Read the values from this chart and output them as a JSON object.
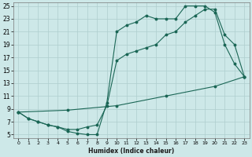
{
  "xlabel": "Humidex (Indice chaleur)",
  "xlim": [
    -0.5,
    23.5
  ],
  "ylim": [
    4.5,
    25.5
  ],
  "xticks": [
    0,
    1,
    2,
    3,
    4,
    5,
    6,
    7,
    8,
    9,
    10,
    11,
    12,
    13,
    14,
    15,
    16,
    17,
    18,
    19,
    20,
    21,
    22,
    23
  ],
  "yticks": [
    5,
    7,
    9,
    11,
    13,
    15,
    17,
    19,
    21,
    23,
    25
  ],
  "bg_color": "#cde8e8",
  "grid_color": "#aecece",
  "line_color": "#1a6655",
  "line1_x": [
    0,
    1,
    2,
    3,
    4,
    5,
    6,
    7,
    8,
    9,
    10,
    11,
    12,
    13,
    14,
    15,
    16,
    17,
    18,
    19,
    20,
    21,
    22,
    23
  ],
  "line1_y": [
    8.5,
    7.5,
    7.0,
    6.5,
    6.2,
    5.5,
    5.2,
    5.0,
    5.0,
    10.0,
    21.0,
    22.0,
    22.5,
    23.5,
    23.0,
    23.0,
    23.0,
    25.0,
    25.0,
    25.0,
    24.0,
    19.0,
    16.0,
    14.0
  ],
  "line2_x": [
    0,
    1,
    2,
    3,
    4,
    5,
    6,
    7,
    8,
    9,
    10,
    11,
    12,
    13,
    14,
    15,
    16,
    17,
    18,
    19,
    20,
    21,
    22,
    23
  ],
  "line2_y": [
    8.5,
    7.5,
    7.0,
    6.5,
    6.2,
    5.8,
    5.8,
    6.2,
    6.5,
    9.5,
    16.5,
    17.5,
    18.0,
    18.5,
    19.0,
    20.5,
    21.0,
    22.5,
    23.5,
    24.5,
    24.5,
    20.5,
    19.0,
    14.0
  ],
  "line3_x": [
    0,
    5,
    10,
    15,
    20,
    23
  ],
  "line3_y": [
    8.5,
    8.8,
    9.5,
    11.0,
    12.5,
    14.0
  ]
}
